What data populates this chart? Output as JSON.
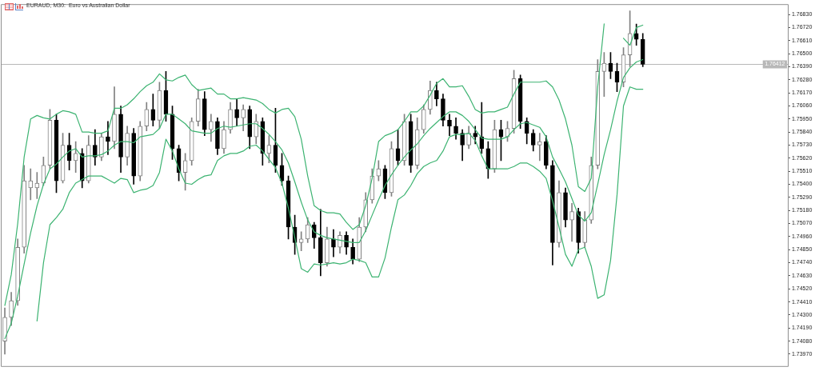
{
  "chart_data": {
    "type": "candlestick",
    "title": "EURAUD, M30:  Euro vs Australian Dollar",
    "categories": [
      null,
      null,
      null,
      null,
      null,
      null,
      null,
      null,
      null,
      null,
      null,
      null,
      null,
      null,
      null,
      null,
      null,
      null,
      null,
      null,
      null,
      null,
      null,
      null,
      null,
      null,
      null,
      null,
      null,
      null,
      null,
      null,
      null,
      null,
      null,
      null,
      null,
      null,
      null,
      null,
      null,
      null,
      null,
      null,
      null,
      null,
      null,
      null,
      null,
      null,
      null,
      null,
      null,
      null,
      null,
      null,
      null,
      null,
      null,
      null,
      null,
      null,
      null,
      null,
      null,
      null,
      null,
      null,
      null,
      null,
      null,
      null,
      null,
      null,
      null,
      null,
      null,
      null,
      null,
      null,
      null,
      null,
      null,
      null,
      null,
      null,
      null,
      null,
      null,
      null,
      null,
      null,
      null,
      null,
      null,
      null,
      null,
      null,
      null,
      null,
      null,
      null,
      null,
      null,
      null,
      null,
      null,
      null,
      null,
      null,
      null,
      null,
      null,
      null,
      null,
      null,
      null,
      null,
      null,
      null,
      null,
      null
    ],
    "colors": [
      "#808080",
      "#808080",
      "#808080",
      "#808080",
      "#808080",
      "#808080",
      "#808080",
      "#808080",
      "#000000",
      "#808080",
      "#000000",
      "#808080",
      "#000000",
      "#808080",
      "#000000",
      "#808080",
      "#000000",
      "#808080",
      "#000000",
      "#808080",
      "#000000",
      "#808080",
      "#808080",
      "#000000",
      "#808080",
      "#000000",
      "#000000",
      "#000000",
      "#808080",
      "#808080",
      "#808080",
      "#000000",
      "#808080",
      "#000000",
      "#808080",
      "#808080",
      "#000000",
      "#808080",
      "#000000",
      "#808080",
      "#000000",
      "#808080",
      "#000000",
      "#000000",
      "#000000",
      "#000000",
      "#808080",
      "#808080",
      "#000000",
      "#000000",
      "#808080",
      "#000000",
      "#808080",
      "#000000",
      "#000000",
      "#808080",
      "#808080",
      "#808080",
      "#808080",
      "#000000",
      "#808080",
      "#000000",
      "#808080",
      "#000000",
      "#808080",
      "#808080",
      "#808080",
      "#000000",
      "#000000",
      "#000000",
      "#000000",
      "#000000",
      "#808080",
      "#000000",
      "#000000",
      "#000000",
      "#808080",
      "#000000",
      "#808080",
      "#808080",
      "#000000",
      "#000000",
      "#000000",
      "#808080",
      "#000000",
      "#000000",
      "#808080",
      "#000000",
      "#808080",
      "#000000",
      "#808080",
      "#808080",
      "#808080",
      "#808080",
      "#000000",
      "#000000",
      "#808080",
      "#808080",
      "#000000",
      "#000000",
      null,
      null,
      null,
      null,
      null,
      null,
      null,
      null,
      null,
      null,
      null,
      null,
      null,
      null,
      null,
      null,
      null,
      null,
      null,
      null,
      null,
      null
    ],
    "ohlc": [
      [
        1.7408,
        1.7436,
        1.7397,
        1.7428
      ],
      [
        1.7428,
        1.7449,
        1.7421,
        1.7442
      ],
      [
        1.7442,
        1.7494,
        1.7438,
        1.7487
      ],
      [
        1.7487,
        1.7556,
        1.7482,
        1.7543
      ],
      [
        1.7537,
        1.7553,
        1.7527,
        1.7543
      ],
      [
        1.7537,
        1.755,
        1.7528,
        1.7541
      ],
      [
        1.7541,
        1.7563,
        1.7539,
        1.7556
      ],
      [
        1.7556,
        1.7603,
        1.7553,
        1.7594
      ],
      [
        1.7594,
        1.7599,
        1.7533,
        1.7543
      ],
      [
        1.7543,
        1.7583,
        1.7541,
        1.7573
      ],
      [
        1.7573,
        1.7583,
        1.7552,
        1.756
      ],
      [
        1.756,
        1.7576,
        1.755,
        1.7566
      ],
      [
        1.7566,
        1.757,
        1.7537,
        1.7543
      ],
      [
        1.7543,
        1.7581,
        1.7541,
        1.7573
      ],
      [
        1.7573,
        1.7586,
        1.7556,
        1.7563
      ],
      [
        1.7563,
        1.7583,
        1.756,
        1.758
      ],
      [
        1.758,
        1.7593,
        1.7565,
        1.7576
      ],
      [
        1.7576,
        1.7622,
        1.757,
        1.7599
      ],
      [
        1.7599,
        1.7606,
        1.755,
        1.7563
      ],
      [
        1.7563,
        1.7589,
        1.7556,
        1.7583
      ],
      [
        1.7583,
        1.7587,
        1.754,
        1.7547
      ],
      [
        1.7547,
        1.7593,
        1.7543,
        1.7589
      ],
      [
        1.7589,
        1.7609,
        1.7585,
        1.7603
      ],
      [
        1.7603,
        1.7616,
        1.7589,
        1.7594
      ],
      [
        1.7594,
        1.7626,
        1.7587,
        1.7619
      ],
      [
        1.7619,
        1.7635,
        1.7593,
        1.7599
      ],
      [
        1.7599,
        1.7606,
        1.7561,
        1.757
      ],
      [
        1.757,
        1.7573,
        1.7543,
        1.755
      ],
      [
        1.755,
        1.7566,
        1.7535,
        1.756
      ],
      [
        1.756,
        1.7596,
        1.7556,
        1.7593
      ],
      [
        1.7593,
        1.762,
        1.7589,
        1.7612
      ],
      [
        1.7612,
        1.7618,
        1.7581,
        1.7586
      ],
      [
        1.7586,
        1.7599,
        1.7576,
        1.7593
      ],
      [
        1.7593,
        1.7596,
        1.7565,
        1.757
      ],
      [
        1.757,
        1.7593,
        1.7566,
        1.7586
      ],
      [
        1.7586,
        1.7609,
        1.7583,
        1.7603
      ],
      [
        1.7603,
        1.7612,
        1.7589,
        1.7596
      ],
      [
        1.7596,
        1.7607,
        1.7585,
        1.7603
      ],
      [
        1.7603,
        1.7606,
        1.757,
        1.758
      ],
      [
        1.758,
        1.7599,
        1.7574,
        1.7593
      ],
      [
        1.7593,
        1.7596,
        1.7556,
        1.7566
      ],
      [
        1.7566,
        1.7581,
        1.7558,
        1.7573
      ],
      [
        1.7573,
        1.7604,
        1.755,
        1.7556
      ],
      [
        1.7556,
        1.7566,
        1.7539,
        1.7543
      ],
      [
        1.7543,
        1.7547,
        1.7494,
        1.7504
      ],
      [
        1.7504,
        1.7514,
        1.7481,
        1.7491
      ],
      [
        1.7491,
        1.75,
        1.7484,
        1.7494
      ],
      [
        1.7494,
        1.7512,
        1.7491,
        1.7506
      ],
      [
        1.7506,
        1.7508,
        1.7486,
        1.7495
      ],
      [
        1.7495,
        1.7519,
        1.7463,
        1.7474
      ],
      [
        1.7474,
        1.7504,
        1.7471,
        1.7494
      ],
      [
        1.7494,
        1.7502,
        1.7479,
        1.7487
      ],
      [
        1.7487,
        1.75,
        1.7482,
        1.7497
      ],
      [
        1.7497,
        1.75,
        1.7481,
        1.7487
      ],
      [
        1.7487,
        1.7494,
        1.7473,
        1.7477
      ],
      [
        1.7477,
        1.7512,
        1.7475,
        1.7504
      ],
      [
        1.7504,
        1.7533,
        1.75,
        1.7527
      ],
      [
        1.7527,
        1.7553,
        1.7524,
        1.7547
      ],
      [
        1.7547,
        1.756,
        1.7543,
        1.7553
      ],
      [
        1.7553,
        1.7556,
        1.7528,
        1.7533
      ],
      [
        1.7533,
        1.7576,
        1.753,
        1.757
      ],
      [
        1.757,
        1.7586,
        1.7556,
        1.756
      ],
      [
        1.756,
        1.7599,
        1.7556,
        1.7593
      ],
      [
        1.7593,
        1.7599,
        1.755,
        1.7556
      ],
      [
        1.7556,
        1.7596,
        1.7553,
        1.7586
      ],
      [
        1.7586,
        1.7607,
        1.7583,
        1.7603
      ],
      [
        1.7603,
        1.7627,
        1.7599,
        1.7619
      ],
      [
        1.7619,
        1.7626,
        1.7606,
        1.7612
      ],
      [
        1.7612,
        1.7616,
        1.7589,
        1.7594
      ],
      [
        1.7594,
        1.7599,
        1.7581,
        1.7589
      ],
      [
        1.7589,
        1.7596,
        1.7578,
        1.7583
      ],
      [
        1.7583,
        1.7586,
        1.756,
        1.7573
      ],
      [
        1.7573,
        1.7589,
        1.757,
        1.7583
      ],
      [
        1.7583,
        1.7589,
        1.7574,
        1.758
      ],
      [
        1.758,
        1.7609,
        1.7566,
        1.757
      ],
      [
        1.757,
        1.7576,
        1.7545,
        1.7553
      ],
      [
        1.7553,
        1.7594,
        1.755,
        1.7586
      ],
      [
        1.7586,
        1.7594,
        1.756,
        1.758
      ],
      [
        1.758,
        1.7593,
        1.7576,
        1.7587
      ],
      [
        1.7587,
        1.7636,
        1.7583,
        1.7629
      ],
      [
        1.7629,
        1.7632,
        1.7587,
        1.7593
      ],
      [
        1.7593,
        1.7596,
        1.7574,
        1.7583
      ],
      [
        1.7583,
        1.7586,
        1.7568,
        1.7573
      ],
      [
        1.7573,
        1.7583,
        1.756,
        1.7576
      ],
      [
        1.7576,
        1.7581,
        1.7553,
        1.7556
      ],
      [
        1.7556,
        1.756,
        1.7472,
        1.7491
      ],
      [
        1.7491,
        1.7543,
        1.7487,
        1.7533
      ],
      [
        1.7533,
        1.7537,
        1.7504,
        1.751
      ],
      [
        1.751,
        1.7524,
        1.7492,
        1.7517
      ],
      [
        1.7517,
        1.752,
        1.7482,
        1.7491
      ],
      [
        1.7491,
        1.7517,
        1.7487,
        1.751
      ],
      [
        1.751,
        1.7563,
        1.7507,
        1.7556
      ],
      [
        1.7556,
        1.7645,
        1.7553,
        1.7635
      ],
      [
        1.7635,
        1.7651,
        1.7614,
        1.7642
      ],
      [
        1.7642,
        1.7651,
        1.7629,
        1.7635
      ],
      [
        1.7635,
        1.7642,
        1.7618,
        1.7626
      ],
      [
        1.7626,
        1.7655,
        1.7622,
        1.7649
      ],
      [
        1.7649,
        1.7686,
        1.7639,
        1.7667
      ],
      [
        1.7667,
        1.7675,
        1.7657,
        1.7662
      ],
      [
        1.7662,
        1.7667,
        1.7639,
        1.7641
      ],
      null,
      null,
      null,
      null,
      null,
      null,
      null,
      null,
      null,
      null,
      null,
      null,
      null,
      null,
      null,
      null,
      null,
      null,
      null,
      null,
      null,
      null
    ],
    "series": [
      {
        "type": "line",
        "color": "#3cb371",
        "values": [
          1.7438,
          1.7464,
          1.7507,
          1.7563,
          1.7595,
          1.7598,
          1.7596,
          1.7595,
          1.7599,
          1.7602,
          1.7601,
          1.7599,
          1.7584,
          1.7584,
          1.7583,
          1.7583,
          1.7585,
          1.7604,
          1.7604,
          1.7607,
          1.7612,
          1.7618,
          1.7623,
          1.7626,
          1.7633,
          1.7628,
          1.7627,
          1.763,
          1.7632,
          1.7624,
          1.7619,
          1.762,
          1.7621,
          1.7616,
          1.7616,
          1.7612,
          1.7612,
          1.7613,
          1.7612,
          1.7611,
          1.7608,
          1.7603,
          1.76,
          1.7603,
          1.7604,
          1.7597,
          1.7578,
          1.7547,
          1.7522,
          1.7518,
          1.7516,
          1.7516,
          1.7515,
          1.7508,
          1.7502,
          1.7506,
          1.7522,
          1.7545,
          1.7576,
          1.7581,
          1.7583,
          1.7586,
          1.7593,
          1.7601,
          1.7601,
          1.7606,
          1.7615,
          1.7625,
          1.7629,
          1.7622,
          1.7622,
          1.7623,
          1.7614,
          1.7603,
          1.76,
          1.7601,
          1.7601,
          1.7603,
          1.7605,
          1.7616,
          1.7626,
          1.7626,
          1.7626,
          1.7626,
          1.7627,
          1.7622,
          1.7611,
          1.7595,
          1.7573,
          1.7538,
          1.7534,
          1.7545,
          1.7622,
          1.7675,
          null,
          null,
          1.7663,
          1.7657,
          1.7672,
          1.7674,
          null,
          null,
          null,
          null,
          null,
          null,
          null,
          null,
          null,
          null,
          null,
          null,
          null,
          null,
          null,
          null,
          null,
          null,
          null,
          null,
          null,
          null
        ]
      },
      {
        "type": "line",
        "color": "#3cb371",
        "values": [
          1.741,
          1.7423,
          1.7446,
          1.7473,
          1.7499,
          1.7522,
          1.754,
          1.7553,
          1.7557,
          1.7563,
          1.7568,
          1.757,
          1.7563,
          1.7564,
          1.7564,
          1.7565,
          1.7568,
          1.7573,
          1.7576,
          1.7576,
          1.7575,
          1.758,
          1.7581,
          1.7582,
          1.7587,
          1.7599,
          1.7599,
          1.7595,
          1.7591,
          1.7585,
          1.7584,
          1.7583,
          1.7583,
          1.7587,
          1.7589,
          1.7588,
          1.7589,
          1.759,
          1.7591,
          1.7591,
          1.7587,
          1.7582,
          1.7576,
          1.7569,
          1.7558,
          1.7542,
          1.7525,
          1.751,
          1.75,
          1.7497,
          1.7495,
          1.7494,
          1.7493,
          1.7492,
          1.7491,
          1.7491,
          1.7501,
          1.7514,
          1.7527,
          1.7539,
          1.7548,
          1.7556,
          1.7563,
          1.7569,
          1.7574,
          1.7581,
          1.7587,
          1.7592,
          1.7597,
          1.7601,
          1.7601,
          1.7598,
          1.7593,
          1.7586,
          1.7579,
          1.7578,
          1.7578,
          1.7578,
          1.758,
          1.7586,
          1.7591,
          1.7592,
          1.759,
          1.7588,
          1.758,
          1.7563,
          1.7553,
          1.7542,
          1.7528,
          1.7514,
          1.7509,
          1.7516,
          1.754,
          1.7565,
          1.7586,
          1.761,
          1.763,
          1.7638,
          1.7643,
          1.7645,
          null,
          null,
          null,
          null,
          null,
          null,
          null,
          null,
          null,
          null,
          null,
          null,
          null,
          null,
          null,
          null,
          null,
          null,
          null,
          null,
          null,
          null
        ]
      },
      {
        "type": "line",
        "color": "#3cb371",
        "values": [
          null,
          null,
          null,
          null,
          null,
          1.7425,
          1.7474,
          1.7506,
          1.7512,
          1.7519,
          1.7533,
          1.7541,
          1.7544,
          1.7547,
          1.7547,
          1.7547,
          1.7544,
          1.7541,
          1.7545,
          1.7544,
          1.7533,
          1.7535,
          1.7536,
          1.7539,
          1.755,
          1.7578,
          1.7568,
          1.7553,
          1.7541,
          1.754,
          1.7544,
          1.7547,
          1.7548,
          1.756,
          1.7564,
          1.7566,
          1.7566,
          1.7568,
          1.7572,
          1.7573,
          1.7568,
          1.7561,
          1.7554,
          1.7541,
          1.752,
          1.7495,
          1.7469,
          1.7466,
          1.7473,
          1.7472,
          1.7473,
          1.7474,
          1.7473,
          1.7474,
          1.7477,
          1.7476,
          1.7474,
          1.7462,
          1.7462,
          1.7478,
          1.7504,
          1.7527,
          1.7531,
          1.7539,
          1.7549,
          1.7555,
          1.7558,
          1.756,
          1.7568,
          1.758,
          1.7582,
          1.7582,
          1.7583,
          1.7577,
          1.7564,
          1.7553,
          1.7553,
          1.7553,
          1.7553,
          1.7555,
          1.7558,
          1.7558,
          1.7555,
          1.7551,
          1.7545,
          1.7526,
          1.7504,
          1.7481,
          1.7471,
          1.7485,
          1.7487,
          1.7471,
          1.7444,
          1.7447,
          1.7476,
          1.7531,
          1.7606,
          1.7622,
          1.762,
          1.762,
          null,
          null,
          null,
          null,
          null,
          null,
          null,
          null,
          null,
          null,
          null,
          null,
          null,
          null,
          null,
          null,
          null,
          null,
          null,
          null,
          null,
          null
        ]
      }
    ],
    "ylim": [
      1.7387,
      1.7691
    ],
    "yticks": [
      {
        "value": 1.7683,
        "label": "1.76830"
      },
      {
        "value": 1.7672,
        "label": "1.76720"
      },
      {
        "value": 1.7661,
        "label": "1.76610"
      },
      {
        "value": 1.765,
        "label": "1.76500"
      },
      {
        "value": 1.7639,
        "label": "1.76390"
      },
      {
        "value": 1.7628,
        "label": "1.76280"
      },
      {
        "value": 1.7617,
        "label": "1.76170"
      },
      {
        "value": 1.7606,
        "label": "1.76060"
      },
      {
        "value": 1.7595,
        "label": "1.75950"
      },
      {
        "value": 1.7584,
        "label": "1.75840"
      },
      {
        "value": 1.7573,
        "label": "1.75730"
      },
      {
        "value": 1.7562,
        "label": "1.75620"
      },
      {
        "value": 1.7551,
        "label": "1.75510"
      },
      {
        "value": 1.754,
        "label": "1.75400"
      },
      {
        "value": 1.7529,
        "label": "1.75290"
      },
      {
        "value": 1.7518,
        "label": "1.75180"
      },
      {
        "value": 1.7507,
        "label": "1.75070"
      },
      {
        "value": 1.7496,
        "label": "1.74960"
      },
      {
        "value": 1.7485,
        "label": "1.74850"
      },
      {
        "value": 1.7474,
        "label": "1.74740"
      },
      {
        "value": 1.7463,
        "label": "1.74630"
      },
      {
        "value": 1.7452,
        "label": "1.74520"
      },
      {
        "value": 1.7441,
        "label": "1.74410"
      },
      {
        "value": 1.743,
        "label": "1.74300"
      },
      {
        "value": 1.7419,
        "label": "1.74190"
      },
      {
        "value": 1.7408,
        "label": "1.74080"
      },
      {
        "value": 1.7397,
        "label": "1.73970"
      }
    ],
    "ref_lines": [
      {
        "axis": "y",
        "value": 1.76412,
        "label": "1.76412",
        "color": "#b8b8b8"
      }
    ],
    "tick_labels": "y"
  }
}
